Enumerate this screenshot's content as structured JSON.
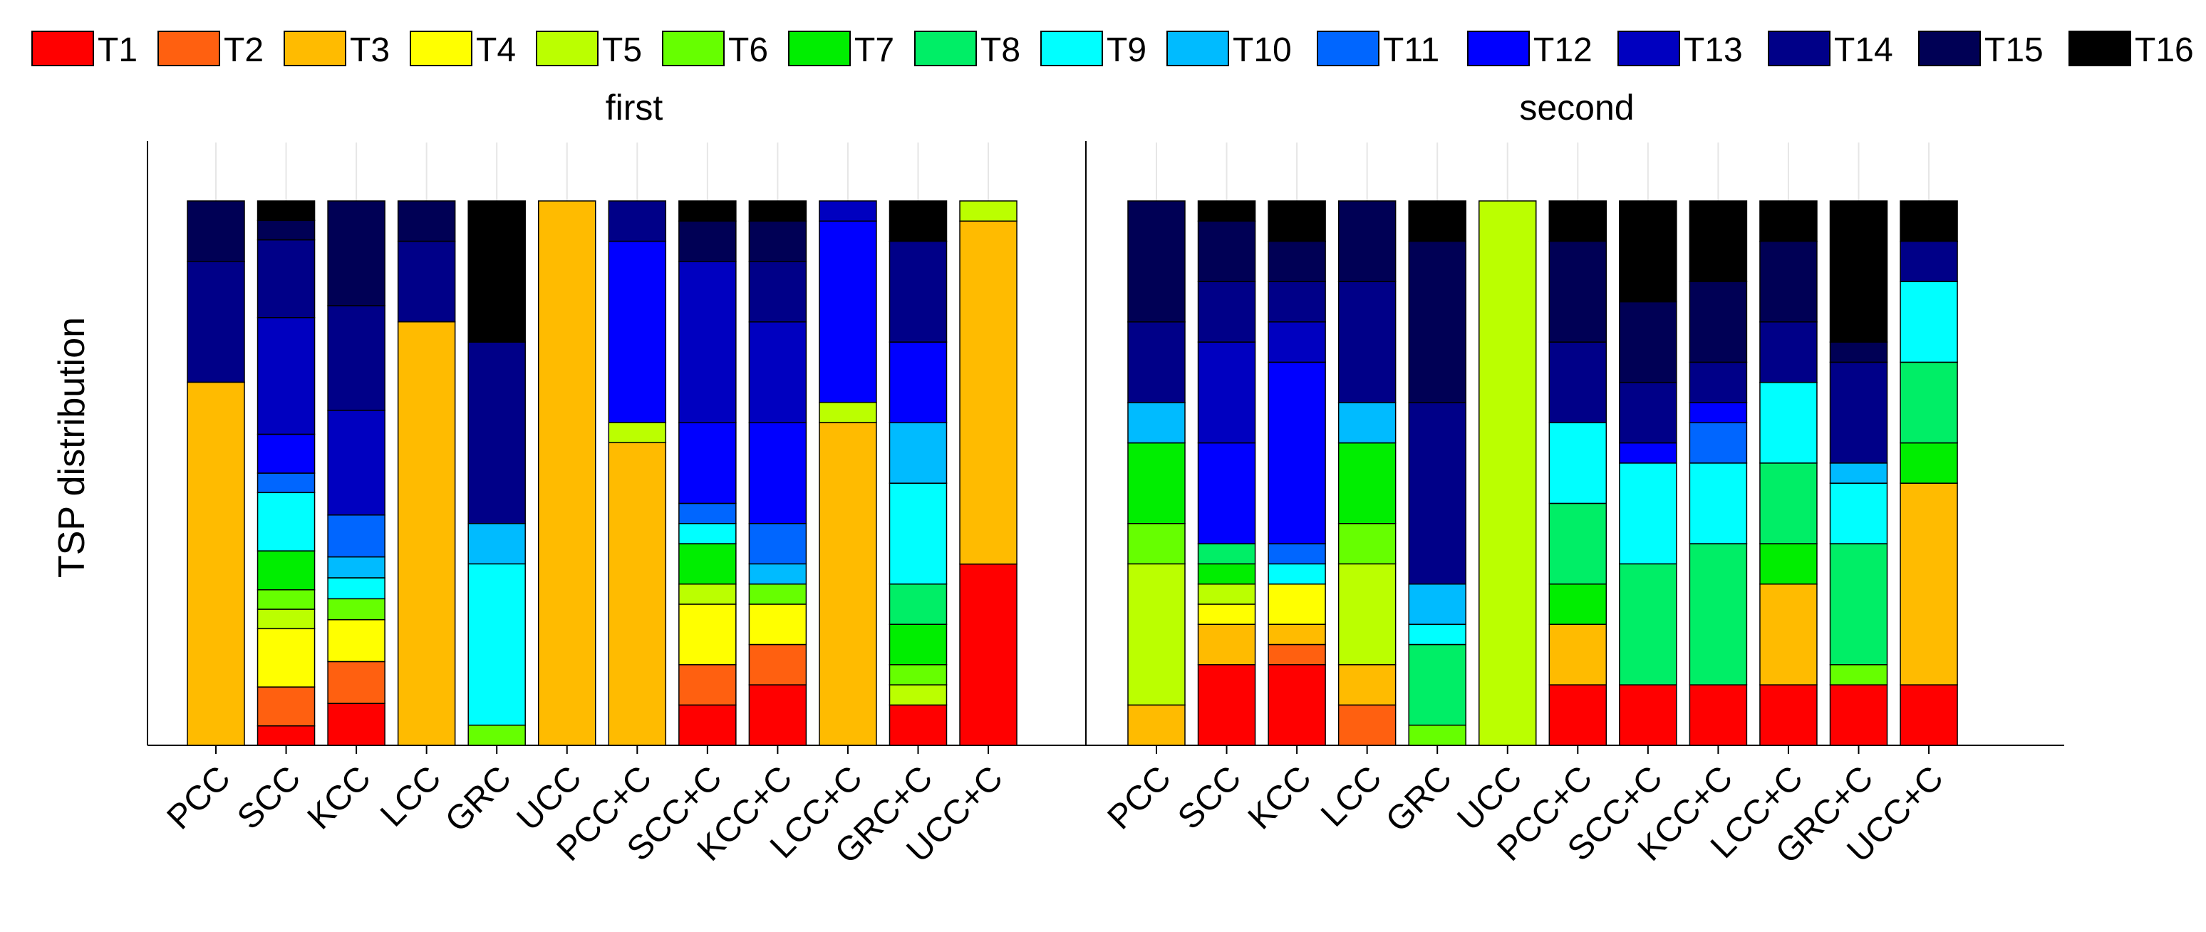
{
  "chart_data": {
    "type": "bar",
    "stacked": true,
    "normalized": true,
    "ylabel": "TSP distribution",
    "ylim": [
      0,
      1
    ],
    "grid": "vertical",
    "legend_position": "top",
    "categories": [
      "PCC",
      "SCC",
      "KCC",
      "LCC",
      "GRC",
      "UCC",
      "PCC+C",
      "SCC+C",
      "KCC+C",
      "LCC+C",
      "GRC+C",
      "UCC+C"
    ],
    "legend": [
      {
        "name": "T1",
        "color": "#ff0000"
      },
      {
        "name": "T2",
        "color": "#ff6010"
      },
      {
        "name": "T3",
        "color": "#ffbb00"
      },
      {
        "name": "T4",
        "color": "#ffff00"
      },
      {
        "name": "T5",
        "color": "#bbff00"
      },
      {
        "name": "T6",
        "color": "#66ff00"
      },
      {
        "name": "T7",
        "color": "#00ee00"
      },
      {
        "name": "T8",
        "color": "#00ee66"
      },
      {
        "name": "T9",
        "color": "#00ffff"
      },
      {
        "name": "T10",
        "color": "#00bbff"
      },
      {
        "name": "T11",
        "color": "#0066ff"
      },
      {
        "name": "T12",
        "color": "#0000ff"
      },
      {
        "name": "T13",
        "color": "#0000c0"
      },
      {
        "name": "T14",
        "color": "#000088"
      },
      {
        "name": "T15",
        "color": "#000055"
      },
      {
        "name": "T16",
        "color": "#000000"
      }
    ],
    "panels": [
      {
        "title": "first",
        "bars": [
          {
            "category": "PCC",
            "segments": [
              [
                3,
                0.667
              ],
              [
                14,
                0.222
              ],
              [
                15,
                0.111
              ]
            ]
          },
          {
            "category": "SCC",
            "segments": [
              [
                1,
                0.037
              ],
              [
                2,
                0.074
              ],
              [
                4,
                0.111
              ],
              [
                5,
                0.037
              ],
              [
                6,
                0.037
              ],
              [
                7,
                0.074
              ],
              [
                9,
                0.111
              ],
              [
                11,
                0.037
              ],
              [
                12,
                0.074
              ],
              [
                13,
                0.222
              ],
              [
                14,
                0.148
              ],
              [
                15,
                0.037
              ],
              [
                16,
                0.037
              ]
            ]
          },
          {
            "category": "KCC",
            "segments": [
              [
                1,
                0.074
              ],
              [
                2,
                0.074
              ],
              [
                4,
                0.074
              ],
              [
                6,
                0.037
              ],
              [
                9,
                0.037
              ],
              [
                10,
                0.037
              ],
              [
                11,
                0.074
              ],
              [
                13,
                0.185
              ],
              [
                14,
                0.185
              ],
              [
                15,
                0.185
              ]
            ]
          },
          {
            "category": "LCC",
            "segments": [
              [
                3,
                0.778
              ],
              [
                14,
                0.148
              ],
              [
                15,
                0.074
              ]
            ]
          },
          {
            "category": "GRC",
            "segments": [
              [
                6,
                0.037
              ],
              [
                9,
                0.296
              ],
              [
                10,
                0.074
              ],
              [
                14,
                0.333
              ],
              [
                16,
                0.259
              ]
            ]
          },
          {
            "category": "UCC",
            "segments": [
              [
                3,
                1.0
              ]
            ]
          },
          {
            "category": "PCC+C",
            "segments": [
              [
                3,
                0.556
              ],
              [
                5,
                0.037
              ],
              [
                12,
                0.333
              ],
              [
                14,
                0.074
              ]
            ]
          },
          {
            "category": "SCC+C",
            "segments": [
              [
                1,
                0.074
              ],
              [
                2,
                0.074
              ],
              [
                4,
                0.111
              ],
              [
                5,
                0.037
              ],
              [
                7,
                0.074
              ],
              [
                9,
                0.037
              ],
              [
                11,
                0.037
              ],
              [
                12,
                0.148
              ],
              [
                13,
                0.296
              ],
              [
                15,
                0.074
              ],
              [
                16,
                0.037
              ]
            ]
          },
          {
            "category": "KCC+C",
            "segments": [
              [
                1,
                0.111
              ],
              [
                2,
                0.074
              ],
              [
                4,
                0.074
              ],
              [
                6,
                0.037
              ],
              [
                10,
                0.037
              ],
              [
                11,
                0.074
              ],
              [
                12,
                0.185
              ],
              [
                13,
                0.185
              ],
              [
                14,
                0.111
              ],
              [
                15,
                0.074
              ],
              [
                16,
                0.037
              ]
            ]
          },
          {
            "category": "LCC+C",
            "segments": [
              [
                3,
                0.593
              ],
              [
                5,
                0.037
              ],
              [
                12,
                0.333
              ],
              [
                13,
                0.037
              ]
            ]
          },
          {
            "category": "GRC+C",
            "segments": [
              [
                1,
                0.074
              ],
              [
                5,
                0.037
              ],
              [
                6,
                0.037
              ],
              [
                7,
                0.074
              ],
              [
                8,
                0.074
              ],
              [
                9,
                0.185
              ],
              [
                10,
                0.111
              ],
              [
                12,
                0.148
              ],
              [
                14,
                0.185
              ],
              [
                16,
                0.074
              ]
            ]
          },
          {
            "category": "UCC+C",
            "segments": [
              [
                1,
                0.333
              ],
              [
                3,
                0.63
              ],
              [
                5,
                0.037
              ]
            ]
          }
        ]
      },
      {
        "title": "second",
        "bars": [
          {
            "category": "PCC",
            "segments": [
              [
                3,
                0.074
              ],
              [
                5,
                0.259
              ],
              [
                6,
                0.074
              ],
              [
                7,
                0.148
              ],
              [
                10,
                0.074
              ],
              [
                14,
                0.148
              ],
              [
                15,
                0.222
              ]
            ]
          },
          {
            "category": "SCC",
            "segments": [
              [
                1,
                0.148
              ],
              [
                3,
                0.074
              ],
              [
                4,
                0.037
              ],
              [
                5,
                0.037
              ],
              [
                7,
                0.037
              ],
              [
                8,
                0.037
              ],
              [
                12,
                0.185
              ],
              [
                13,
                0.185
              ],
              [
                14,
                0.111
              ],
              [
                15,
                0.111
              ],
              [
                16,
                0.037
              ]
            ]
          },
          {
            "category": "KCC",
            "segments": [
              [
                1,
                0.148
              ],
              [
                2,
                0.037
              ],
              [
                3,
                0.037
              ],
              [
                4,
                0.074
              ],
              [
                9,
                0.037
              ],
              [
                11,
                0.037
              ],
              [
                12,
                0.333
              ],
              [
                13,
                0.074
              ],
              [
                14,
                0.074
              ],
              [
                15,
                0.074
              ],
              [
                16,
                0.074
              ]
            ]
          },
          {
            "category": "LCC",
            "segments": [
              [
                2,
                0.074
              ],
              [
                3,
                0.074
              ],
              [
                5,
                0.185
              ],
              [
                6,
                0.074
              ],
              [
                7,
                0.148
              ],
              [
                10,
                0.074
              ],
              [
                14,
                0.222
              ],
              [
                15,
                0.148
              ]
            ]
          },
          {
            "category": "GRC",
            "segments": [
              [
                6,
                0.037
              ],
              [
                8,
                0.148
              ],
              [
                9,
                0.037
              ],
              [
                10,
                0.074
              ],
              [
                14,
                0.333
              ],
              [
                15,
                0.296
              ],
              [
                16,
                0.074
              ]
            ]
          },
          {
            "category": "UCC",
            "segments": [
              [
                5,
                1.0
              ]
            ]
          },
          {
            "category": "PCC+C",
            "segments": [
              [
                1,
                0.111
              ],
              [
                3,
                0.111
              ],
              [
                7,
                0.074
              ],
              [
                8,
                0.148
              ],
              [
                9,
                0.148
              ],
              [
                14,
                0.148
              ],
              [
                15,
                0.185
              ],
              [
                16,
                0.074
              ]
            ]
          },
          {
            "category": "SCC+C",
            "segments": [
              [
                1,
                0.111
              ],
              [
                8,
                0.222
              ],
              [
                9,
                0.185
              ],
              [
                12,
                0.037
              ],
              [
                14,
                0.111
              ],
              [
                15,
                0.148
              ],
              [
                16,
                0.185
              ]
            ]
          },
          {
            "category": "KCC+C",
            "segments": [
              [
                1,
                0.111
              ],
              [
                8,
                0.259
              ],
              [
                9,
                0.148
              ],
              [
                11,
                0.074
              ],
              [
                12,
                0.037
              ],
              [
                14,
                0.074
              ],
              [
                15,
                0.148
              ],
              [
                16,
                0.148
              ]
            ]
          },
          {
            "category": "LCC+C",
            "segments": [
              [
                1,
                0.111
              ],
              [
                3,
                0.185
              ],
              [
                7,
                0.074
              ],
              [
                8,
                0.148
              ],
              [
                9,
                0.148
              ],
              [
                14,
                0.111
              ],
              [
                15,
                0.148
              ],
              [
                16,
                0.074
              ]
            ]
          },
          {
            "category": "GRC+C",
            "segments": [
              [
                1,
                0.111
              ],
              [
                6,
                0.037
              ],
              [
                8,
                0.222
              ],
              [
                9,
                0.111
              ],
              [
                10,
                0.037
              ],
              [
                14,
                0.185
              ],
              [
                15,
                0.037
              ],
              [
                16,
                0.259
              ]
            ]
          },
          {
            "category": "UCC+C",
            "segments": [
              [
                1,
                0.111
              ],
              [
                3,
                0.37
              ],
              [
                7,
                0.074
              ],
              [
                8,
                0.148
              ],
              [
                9,
                0.148
              ],
              [
                14,
                0.074
              ],
              [
                16,
                0.074
              ]
            ]
          }
        ]
      }
    ]
  }
}
